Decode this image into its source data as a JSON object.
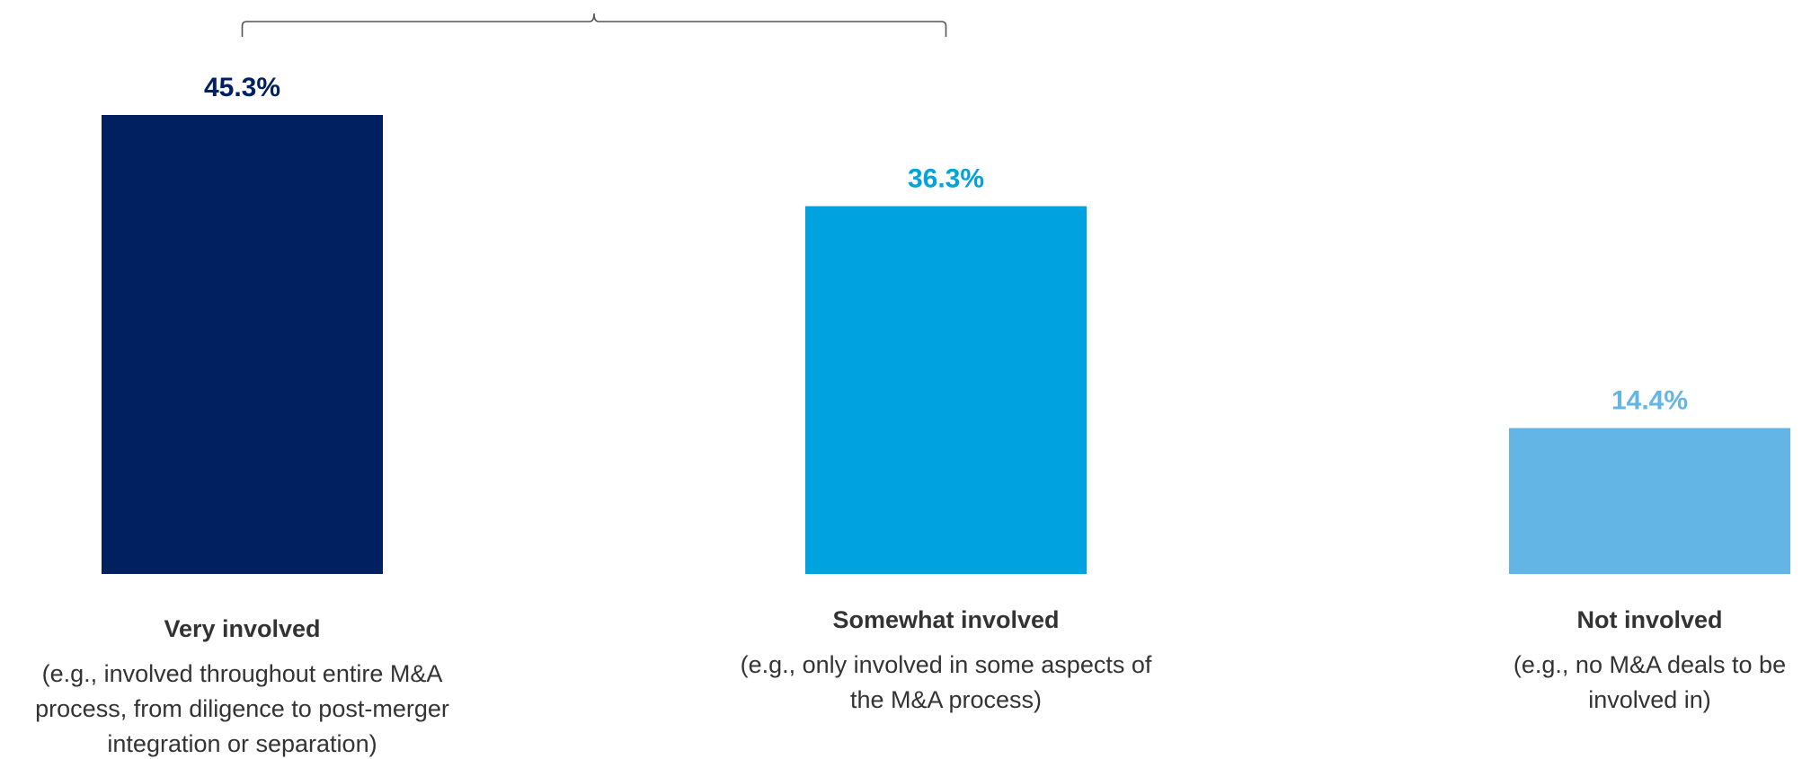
{
  "chart_data": {
    "type": "bar",
    "categories": [
      "Very involved",
      "Somewhat involved",
      "Not involved"
    ],
    "descriptions": [
      [
        "(e.g., involved throughout entire M&A",
        "process, from diligence to post-merger",
        "integration or separation)"
      ],
      [
        "(e.g., only involved in some aspects of",
        "the M&A process)"
      ],
      [
        "(e.g., no M&A deals to be",
        "involved in)"
      ]
    ],
    "values": [
      45.3,
      36.3,
      14.4
    ],
    "value_labels": [
      "45.3%",
      "36.3%",
      "14.4%"
    ],
    "colors": [
      "#002060",
      "#00A2E0",
      "#62B5E5"
    ],
    "bracket_over": [
      "Very involved",
      "Somewhat involved"
    ],
    "ylim": [
      0,
      45.3
    ],
    "grid": false,
    "title": "",
    "xlabel": "",
    "ylabel": ""
  }
}
